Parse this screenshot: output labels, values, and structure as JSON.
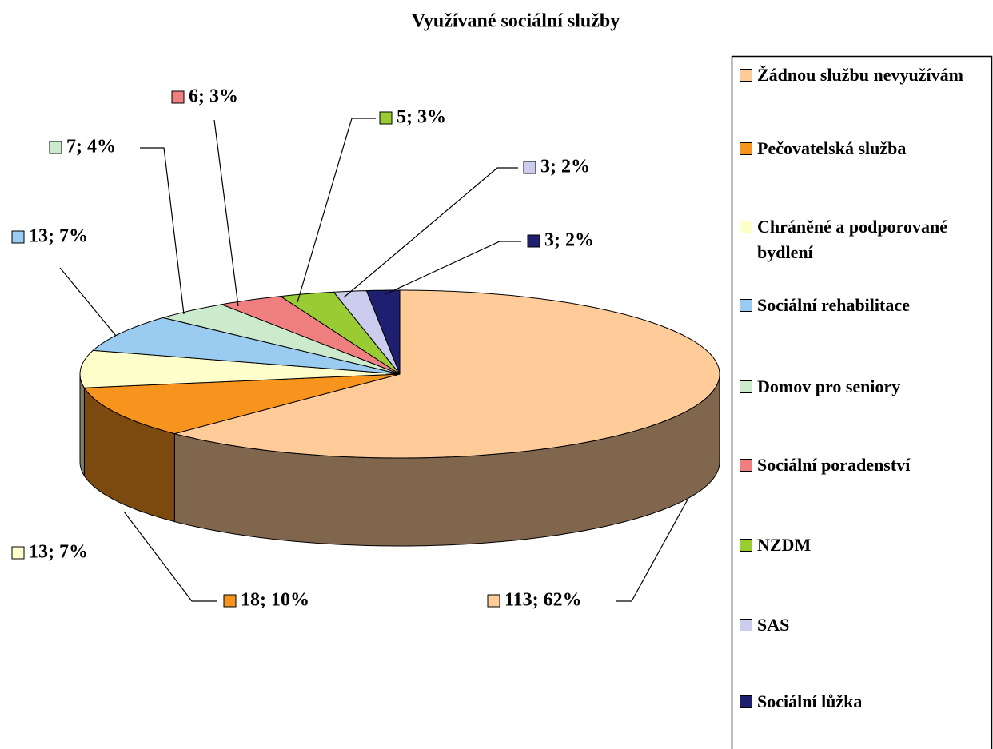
{
  "chart_data": {
    "type": "pie",
    "title": "Využívané sociální služby",
    "categories": [
      "Žádnou službu nevyužívám",
      "Pečovatelská služba",
      "Chráněné a podporované bydlení",
      "Sociální rehabilitace",
      "Domov pro seniory",
      "Sociální poradenství",
      "NZDM",
      "SAS",
      "Sociální lůžka"
    ],
    "values": [
      113,
      18,
      13,
      13,
      7,
      6,
      5,
      3,
      3
    ],
    "value_labels": [
      "113; 62%",
      "18; 10%",
      "13; 7%",
      "13; 7%",
      "7; 4%",
      "6; 3%",
      "5; 3%",
      "3; 2%",
      "3; 2%"
    ],
    "colors": [
      "#FFCC99",
      "#F7941D",
      "#FFFFCC",
      "#99CCF0",
      "#CCEBCC",
      "#F08080",
      "#99CC33",
      "#CCCCEE",
      "#1F1F6F"
    ],
    "legend": "right"
  }
}
